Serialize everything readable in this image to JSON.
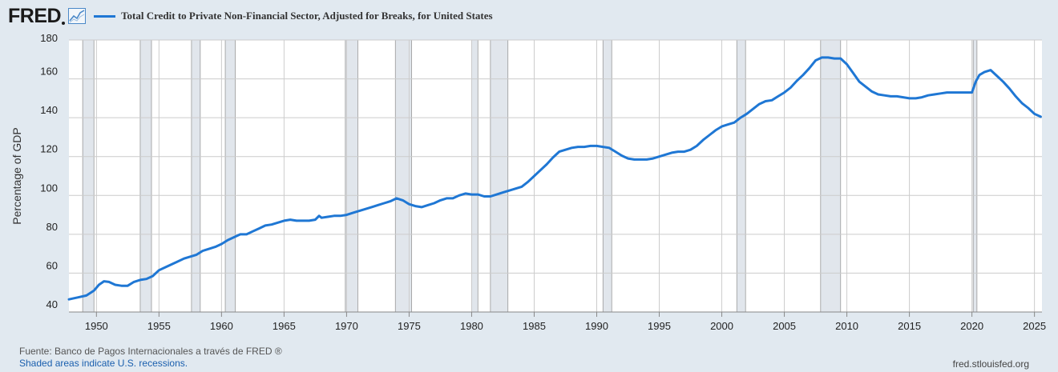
{
  "logo": {
    "text": "FRED",
    "icon": "fred-trend-icon"
  },
  "legend": {
    "label": "Total Credit to Private Non-Financial Sector, Adjusted for Breaks, for United States",
    "color": "#1f77d4"
  },
  "footer": {
    "source": "Fuente: Banco de Pagos Internacionales a través de FRED ®",
    "recession_note": "Shaded areas indicate U.S. recessions.",
    "site": "fred.stlouisfed.org"
  },
  "chart_data": {
    "type": "line",
    "ylabel": "Percentage of GDP",
    "xlim": [
      1947.8,
      2025.6
    ],
    "ylim": [
      40,
      180
    ],
    "yticks": [
      40,
      60,
      80,
      100,
      120,
      140,
      160,
      180
    ],
    "xticks": [
      1950,
      1955,
      1960,
      1965,
      1970,
      1975,
      1980,
      1985,
      1990,
      1995,
      2000,
      2005,
      2010,
      2015,
      2020,
      2025
    ],
    "grid": true,
    "line_color": "#1f77d4",
    "recessions": [
      [
        1948.9,
        1949.8
      ],
      [
        1953.5,
        1954.4
      ],
      [
        1957.6,
        1958.3
      ],
      [
        1960.3,
        1961.1
      ],
      [
        1969.9,
        1970.9
      ],
      [
        1973.9,
        1975.2
      ],
      [
        1980.0,
        1980.5
      ],
      [
        1981.5,
        1982.9
      ],
      [
        1990.5,
        1991.2
      ],
      [
        2001.2,
        2001.9
      ],
      [
        2007.9,
        2009.5
      ],
      [
        2020.1,
        2020.4
      ]
    ],
    "series": [
      {
        "x": [
          1947.8,
          1948.5,
          1949.2,
          1949.8,
          1950.2,
          1950.6,
          1951.0,
          1951.5,
          1952.0,
          1952.5,
          1953.0,
          1953.5,
          1954.0,
          1954.5,
          1955.0,
          1955.5,
          1956.0,
          1956.5,
          1957.0,
          1957.5,
          1958.0,
          1958.5,
          1959.0,
          1959.5,
          1960.0,
          1960.5,
          1961.0,
          1961.5,
          1962.0,
          1962.5,
          1963.0,
          1963.5,
          1964.0,
          1964.5,
          1965.0,
          1965.5,
          1966.0,
          1966.5,
          1967.0,
          1967.5,
          1967.8,
          1968.0,
          1968.5,
          1969.0,
          1969.5,
          1970.0,
          1970.5,
          1971.0,
          1971.5,
          1972.0,
          1972.5,
          1973.0,
          1973.5,
          1974.0,
          1974.5,
          1975.0,
          1975.5,
          1976.0,
          1976.5,
          1977.0,
          1977.5,
          1978.0,
          1978.5,
          1979.0,
          1979.5,
          1980.0,
          1980.5,
          1981.0,
          1981.5,
          1982.0,
          1982.5,
          1983.0,
          1983.5,
          1984.0,
          1984.5,
          1985.0,
          1985.5,
          1986.0,
          1986.5,
          1987.0,
          1987.5,
          1988.0,
          1988.5,
          1989.0,
          1989.5,
          1990.0,
          1990.5,
          1991.0,
          1991.5,
          1992.0,
          1992.5,
          1993.0,
          1993.5,
          1994.0,
          1994.5,
          1995.0,
          1995.5,
          1996.0,
          1996.5,
          1997.0,
          1997.5,
          1998.0,
          1998.5,
          1999.0,
          1999.5,
          2000.0,
          2000.5,
          2001.0,
          2001.5,
          2002.0,
          2002.5,
          2003.0,
          2003.5,
          2004.0,
          2004.5,
          2005.0,
          2005.5,
          2006.0,
          2006.5,
          2007.0,
          2007.5,
          2008.0,
          2008.5,
          2009.0,
          2009.5,
          2010.0,
          2010.5,
          2011.0,
          2011.5,
          2012.0,
          2012.5,
          2013.0,
          2013.5,
          2014.0,
          2014.5,
          2015.0,
          2015.5,
          2016.0,
          2016.5,
          2017.0,
          2017.5,
          2018.0,
          2018.5,
          2019.0,
          2019.5,
          2020.0,
          2020.3,
          2020.6,
          2021.0,
          2021.5,
          2022.0,
          2022.5,
          2023.0,
          2023.5,
          2024.0,
          2024.5,
          2025.0,
          2025.5
        ],
        "y": [
          46.5,
          47.5,
          48.5,
          51.0,
          54.0,
          55.8,
          55.5,
          54.0,
          53.5,
          53.5,
          55.5,
          56.5,
          57.0,
          58.5,
          61.5,
          63.0,
          64.5,
          66.0,
          67.5,
          68.5,
          69.5,
          71.5,
          72.5,
          73.5,
          75.0,
          77.0,
          78.5,
          80.0,
          80.0,
          81.5,
          83.0,
          84.5,
          85.0,
          86.0,
          87.0,
          87.5,
          87.0,
          87.0,
          87.0,
          87.5,
          89.5,
          88.5,
          89.0,
          89.5,
          89.5,
          90.0,
          91.0,
          92.0,
          93.0,
          94.0,
          95.0,
          96.0,
          97.0,
          98.5,
          97.5,
          95.5,
          94.5,
          94.0,
          95.0,
          96.0,
          97.5,
          98.5,
          98.5,
          100.0,
          101.0,
          100.5,
          100.5,
          99.5,
          99.5,
          100.5,
          101.5,
          102.5,
          103.5,
          104.5,
          107.0,
          110.0,
          113.0,
          116.0,
          119.5,
          122.5,
          123.5,
          124.5,
          125.0,
          125.0,
          125.5,
          125.5,
          125.0,
          124.5,
          122.5,
          120.5,
          119.0,
          118.5,
          118.5,
          118.5,
          119.0,
          120.0,
          121.0,
          122.0,
          122.5,
          122.5,
          123.5,
          125.5,
          128.5,
          131.0,
          133.5,
          135.5,
          136.5,
          137.5,
          140.0,
          142.0,
          144.5,
          147.0,
          148.5,
          149.0,
          151.0,
          153.0,
          155.5,
          159.0,
          162.0,
          165.5,
          169.5,
          171.0,
          171.0,
          170.5,
          170.5,
          167.5,
          163.0,
          158.5,
          156.0,
          153.5,
          152.0,
          151.5,
          151.0,
          151.0,
          150.5,
          150.0,
          150.0,
          150.5,
          151.5,
          152.0,
          152.5,
          153.0,
          153.0,
          153.0,
          153.0,
          153.0,
          158.5,
          162.0,
          163.5,
          164.5,
          161.5,
          158.5,
          155.0,
          151.0,
          147.5,
          145.0,
          142.0,
          140.5
        ]
      }
    ]
  }
}
